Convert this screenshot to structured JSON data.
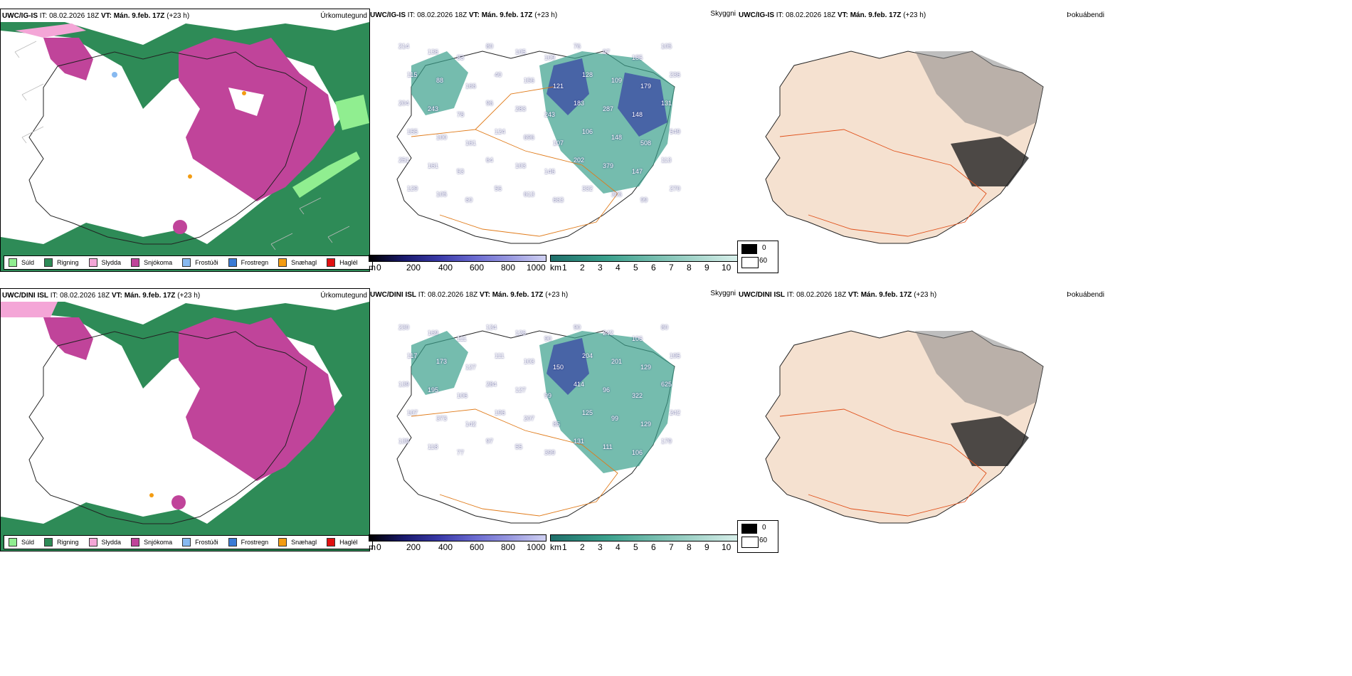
{
  "panels": [
    {
      "id": "p1",
      "title_bold": "UWC/IG-IS",
      "title_rest": " IT: 08.02.2026 18Z ",
      "vt_bold": "VT: Mán. 9.feb. 17Z",
      "lead": " (+23 h)",
      "right": "Úrkomutegund"
    },
    {
      "id": "p2",
      "title_bold": "UWC/IG-IS",
      "title_rest": " IT: 08.02.2026 18Z ",
      "vt_bold": "VT: Mán. 9.feb. 17Z",
      "lead": " (+23 h)",
      "right": "Skyggni"
    },
    {
      "id": "p3",
      "title_bold": "UWC/IG-IS",
      "title_rest": " IT: 08.02.2026 18Z ",
      "vt_bold": "VT: Mán. 9.feb. 17Z",
      "lead": " (+23 h)",
      "right": "Þokuábendi"
    },
    {
      "id": "p4",
      "title_bold": "UWC/DINI ISL",
      "title_rest": " IT: 08.02.2026 18Z ",
      "vt_bold": "VT: Mán. 9.feb. 17Z",
      "lead": " (+23 h)",
      "right": "Úrkomutegund"
    },
    {
      "id": "p5",
      "title_bold": "UWC/DINI ISL",
      "title_rest": " IT: 08.02.2026 18Z ",
      "vt_bold": "VT: Mán. 9.feb. 17Z",
      "lead": " (+23 h)",
      "right": "Skyggni"
    },
    {
      "id": "p6",
      "title_bold": "UWC/DINI ISL",
      "title_rest": " IT: 08.02.2026 18Z ",
      "vt_bold": "VT: Mán. 9.feb. 17Z",
      "lead": " (+23 h)",
      "right": "Þokuábendi"
    }
  ],
  "precip_legend": [
    {
      "label": "Súld",
      "color": "#90ee90"
    },
    {
      "label": "Rigning",
      "color": "#2e8b57"
    },
    {
      "label": "Slydda",
      "color": "#f4a6d7"
    },
    {
      "label": "Snjókoma",
      "color": "#c0449a"
    },
    {
      "label": "Frostúði",
      "color": "#87b9f0"
    },
    {
      "label": "Frostregn",
      "color": "#3a7bd5"
    },
    {
      "label": "Snæhagl",
      "color": "#f39c12"
    },
    {
      "label": "Haglél",
      "color": "#e01010"
    }
  ],
  "vis_bar_m": {
    "unit": "m",
    "ticks": [
      "0",
      "200",
      "400",
      "600",
      "800",
      "1000"
    ]
  },
  "vis_bar_km": {
    "unit": "km",
    "ticks": [
      "1",
      "2",
      "3",
      "4",
      "5",
      "6",
      "7",
      "8",
      "9",
      "10"
    ]
  },
  "fog_legend": {
    "top": "0",
    "bottom": "60"
  },
  "vis_values_top": [
    "214",
    "136",
    "83",
    "80",
    "105",
    "109",
    "76",
    "97",
    "185",
    "105",
    "115",
    "88",
    "166",
    "40",
    "156",
    "121",
    "128",
    "109",
    "179",
    "236",
    "204",
    "243",
    "78",
    "96",
    "283",
    "243",
    "183",
    "287",
    "148",
    "131",
    "155",
    "100",
    "161",
    "124",
    "696",
    "107",
    "106",
    "148",
    "508",
    "549",
    "251",
    "161",
    "53",
    "64",
    "103",
    "146",
    "202",
    "379",
    "147",
    "113",
    "129",
    "105",
    "60",
    "56",
    "613",
    "663",
    "332",
    "306",
    "99",
    "270"
  ],
  "vis_values_bottom": [
    "230",
    "169",
    "111",
    "134",
    "126",
    "90",
    "90",
    "242",
    "106",
    "80",
    "117",
    "173",
    "127",
    "111",
    "103",
    "150",
    "204",
    "201",
    "129",
    "195",
    "139",
    "195",
    "106",
    "284",
    "127",
    "99",
    "414",
    "96",
    "322",
    "625",
    "107",
    "373",
    "142",
    "196",
    "207",
    "85",
    "125",
    "99",
    "129",
    "242",
    "139",
    "118",
    "77",
    "97",
    "55",
    "399",
    "131",
    "111",
    "106",
    "179"
  ]
}
